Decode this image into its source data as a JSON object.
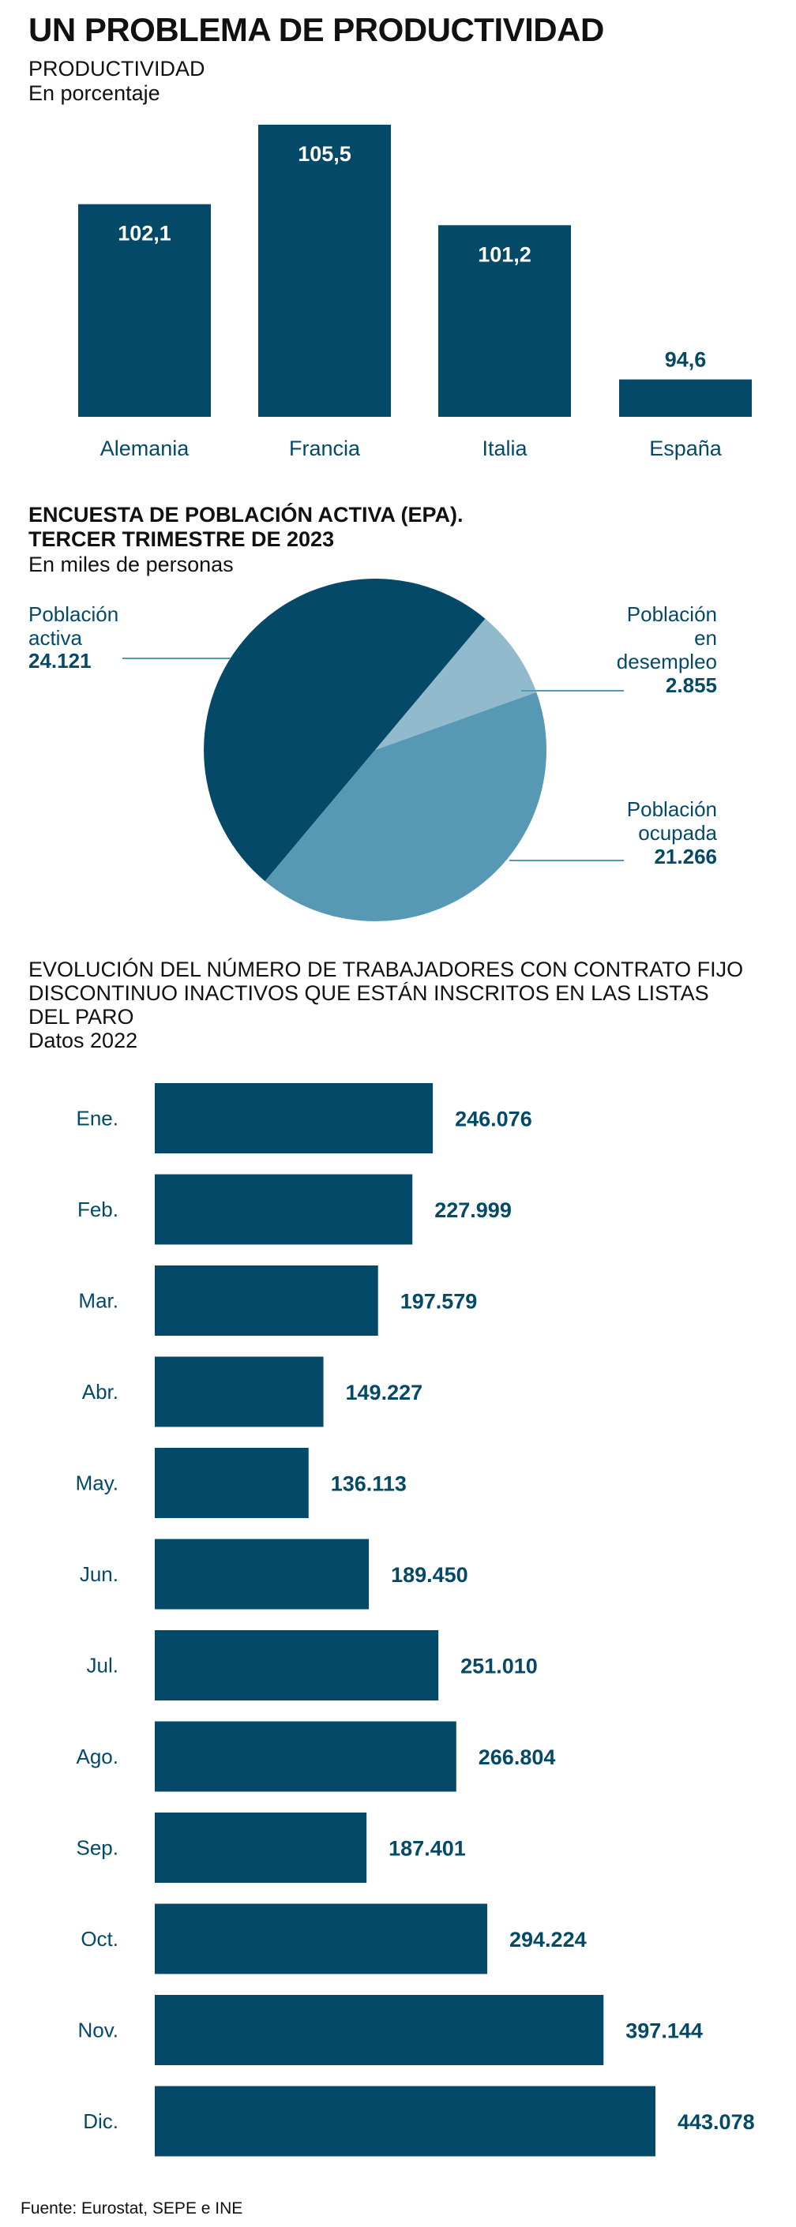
{
  "page": {
    "title": "UN PROBLEMA DE PRODUCTIVIDAD",
    "source": "Fuente: Eurostat, SEPE e INE"
  },
  "colors": {
    "dark": "#044a68",
    "medium": "#5798b4",
    "light": "#92bacd",
    "ink": "#111111"
  },
  "chart_data": [
    {
      "type": "bar",
      "title": "PRODUCTIVIDAD",
      "subtitle": "En porcentaje",
      "categories": [
        "Alemania",
        "Francia",
        "Italia",
        "España"
      ],
      "values": [
        102.1,
        105.5,
        101.2,
        94.6
      ],
      "value_labels": [
        "102,1",
        "105,5",
        "101,2",
        "94,6"
      ],
      "ylim": [
        93,
        105.5
      ],
      "grid": false
    },
    {
      "type": "pie",
      "title_lines": [
        "ENCUESTA DE POBLACIÓN ACTIVA (EPA).",
        "TERCER TRIMESTRE DE 2023"
      ],
      "subtitle": "En miles de personas",
      "total": {
        "label_lines": [
          "Población",
          "activa"
        ],
        "value": 24121,
        "value_label": "24.121"
      },
      "slices": [
        {
          "label_lines": [
            "Población",
            "en",
            "desempleo"
          ],
          "value": 2855,
          "value_label": "2.855"
        },
        {
          "label_lines": [
            "Población",
            "ocupada"
          ],
          "value": 21266,
          "value_label": "21.266"
        }
      ]
    },
    {
      "type": "bar",
      "orientation": "horizontal",
      "title_lines": [
        "EVOLUCIÓN DEL NÚMERO DE TRABAJADORES CON CONTRATO FIJO",
        "DISCONTINUO INACTIVOS QUE ESTÁN INSCRITOS EN LAS LISTAS",
        "DEL PARO"
      ],
      "subtitle": "Datos 2022",
      "categories": [
        "Ene.",
        "Feb.",
        "Mar.",
        "Abr.",
        "May.",
        "Jun.",
        "Jul.",
        "Ago.",
        "Sep.",
        "Oct.",
        "Nov.",
        "Dic."
      ],
      "values": [
        246076,
        227999,
        197579,
        149227,
        136113,
        189450,
        251010,
        266804,
        187401,
        294224,
        397144,
        443078
      ],
      "value_labels": [
        "246.076",
        "227.999",
        "197.579",
        "149.227",
        "136.113",
        "189.450",
        "251.010",
        "266.804",
        "187.401",
        "294.224",
        "397.144",
        "443.078"
      ],
      "xlim": [
        0,
        443078
      ],
      "grid": false
    }
  ]
}
